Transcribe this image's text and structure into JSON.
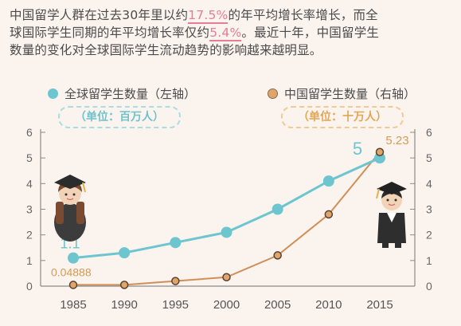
{
  "intro": {
    "line1_a": "中国留学人群在过去30年里以约",
    "line1_hl": "17.5%",
    "line1_b": "的年平均增长率增长，而全",
    "line2_a": "球国际学生同期的年平均增长率仅约",
    "line2_hl": "5.4%",
    "line2_b": "。最近十年，中国留学生",
    "line3": "数量的变化对全球国际学生流动趋势的影响越来越明显。"
  },
  "legend": {
    "left_label": "全球留学生数量（左轴）",
    "right_label": "中国留学生数量（右轴）",
    "left_unit": "（单位：百万人）",
    "right_unit": "（单位：十万人）"
  },
  "colors": {
    "global": "#6cc5cf",
    "china": "#d08f56",
    "china_fill": "#e0a56b",
    "axis": "#8a8a8a",
    "grid": "#d9d2cc",
    "highlight": "#e77b9a",
    "background": "#fbf3ee"
  },
  "icons": [
    "graduate-girl-icon",
    "graduate-boy-icon"
  ],
  "chart_data": {
    "type": "line",
    "x": [
      1985,
      1990,
      1995,
      2000,
      2005,
      2010,
      2015
    ],
    "series": [
      {
        "name": "全球留学生数量（左轴）",
        "axis": "left",
        "values": [
          1.1,
          1.3,
          1.7,
          2.1,
          3.0,
          4.1,
          5.0
        ]
      },
      {
        "name": "中国留学生数量（右轴）",
        "axis": "right",
        "values": [
          0.04888,
          0.05,
          0.2,
          0.35,
          1.2,
          2.8,
          5.23
        ]
      }
    ],
    "ylim_left": [
      0,
      6
    ],
    "ylim_right": [
      0,
      6
    ],
    "yticks_left": [
      "0",
      "1",
      "2",
      "3",
      "4",
      "5",
      "6"
    ],
    "yticks_right": [
      "0",
      "1",
      "2",
      "3",
      "4",
      "5",
      "6"
    ],
    "xticks": [
      "1985",
      "1990",
      "1995",
      "2000",
      "2005",
      "2010",
      "2015"
    ],
    "annotations": [
      "1.1",
      "0.04888",
      "5",
      "5.23"
    ],
    "grid": false
  }
}
